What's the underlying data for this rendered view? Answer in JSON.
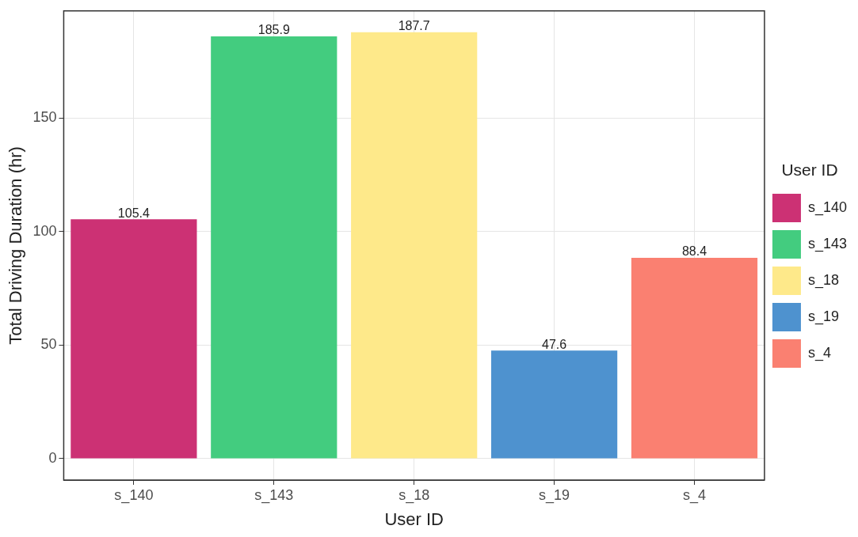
{
  "chart_data": {
    "type": "bar",
    "xlabel": "User ID",
    "ylabel": "Total Driving Duration (hr)",
    "legend_title": "User ID",
    "legend": "right",
    "categories": [
      "s_140",
      "s_143",
      "s_18",
      "s_19",
      "s_4"
    ],
    "series": [
      {
        "name": "s_140",
        "color": "#cc3174",
        "values": [
          105.4,
          null,
          null,
          null,
          null
        ]
      },
      {
        "name": "s_143",
        "color": "#43cc7f",
        "values": [
          null,
          185.9,
          null,
          null,
          null
        ]
      },
      {
        "name": "s_18",
        "color": "#fee98a",
        "values": [
          null,
          null,
          187.7,
          null,
          null
        ]
      },
      {
        "name": "s_19",
        "color": "#4e92cf",
        "values": [
          null,
          null,
          null,
          47.6,
          null
        ]
      },
      {
        "name": "s_4",
        "color": "#fa8071",
        "values": [
          null,
          null,
          null,
          null,
          88.4
        ]
      }
    ],
    "ylim": [
      -9.4,
      197.1
    ],
    "yticks": [
      0,
      50,
      100,
      150
    ],
    "grid": true,
    "data_labels": true
  }
}
